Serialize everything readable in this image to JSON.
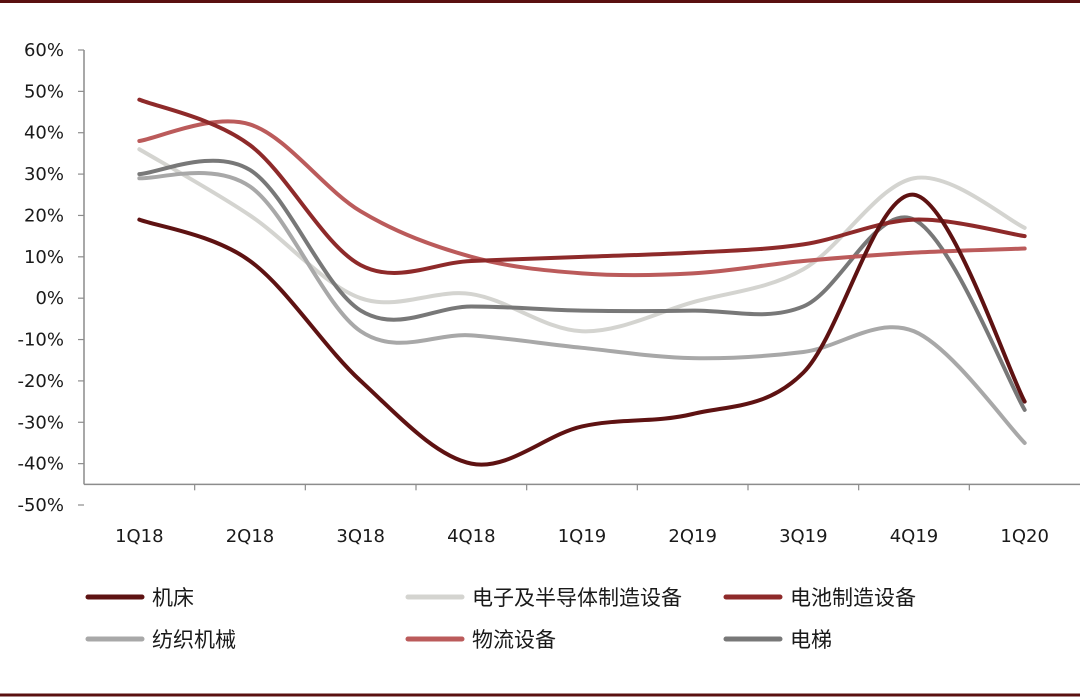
{
  "chart_data": {
    "type": "line",
    "title": "",
    "xlabel": "",
    "ylabel": "",
    "categories": [
      "1Q18",
      "2Q18",
      "3Q18",
      "4Q18",
      "1Q19",
      "2Q19",
      "3Q19",
      "4Q19",
      "1Q20"
    ],
    "ylim": [
      -0.5,
      0.6
    ],
    "y_ticks": [
      "60%",
      "50%",
      "40%",
      "30%",
      "20%",
      "10%",
      "0%",
      "-10%",
      "-20%",
      "-30%",
      "-40%",
      "-50%"
    ],
    "grid": false,
    "legend_position": "bottom",
    "series": [
      {
        "name": "机床",
        "color": "#5e1212",
        "values": [
          0.19,
          0.09,
          -0.2,
          -0.4,
          -0.31,
          -0.28,
          -0.18,
          0.25,
          -0.25
        ]
      },
      {
        "name": "电子及半导体制造设备",
        "color": "#d4d4d0",
        "values": [
          0.36,
          0.2,
          0.0,
          0.01,
          -0.08,
          -0.01,
          0.07,
          0.29,
          0.17
        ]
      },
      {
        "name": "电池制造设备",
        "color": "#8e2a2a",
        "values": [
          0.48,
          0.37,
          0.08,
          0.09,
          0.1,
          0.11,
          0.13,
          0.19,
          0.15
        ]
      },
      {
        "name": "纺织机械",
        "color": "#a8a8a8",
        "values": [
          0.29,
          0.27,
          -0.08,
          -0.09,
          -0.12,
          -0.145,
          -0.13,
          -0.08,
          -0.35
        ]
      },
      {
        "name": "物流设备",
        "color": "#bb5b5b",
        "values": [
          0.38,
          0.42,
          0.21,
          0.1,
          0.06,
          0.06,
          0.09,
          0.11,
          0.12
        ]
      },
      {
        "name": "电梯",
        "color": "#787878",
        "values": [
          0.3,
          0.31,
          -0.03,
          -0.02,
          -0.03,
          -0.03,
          -0.02,
          0.19,
          -0.27
        ]
      }
    ]
  }
}
